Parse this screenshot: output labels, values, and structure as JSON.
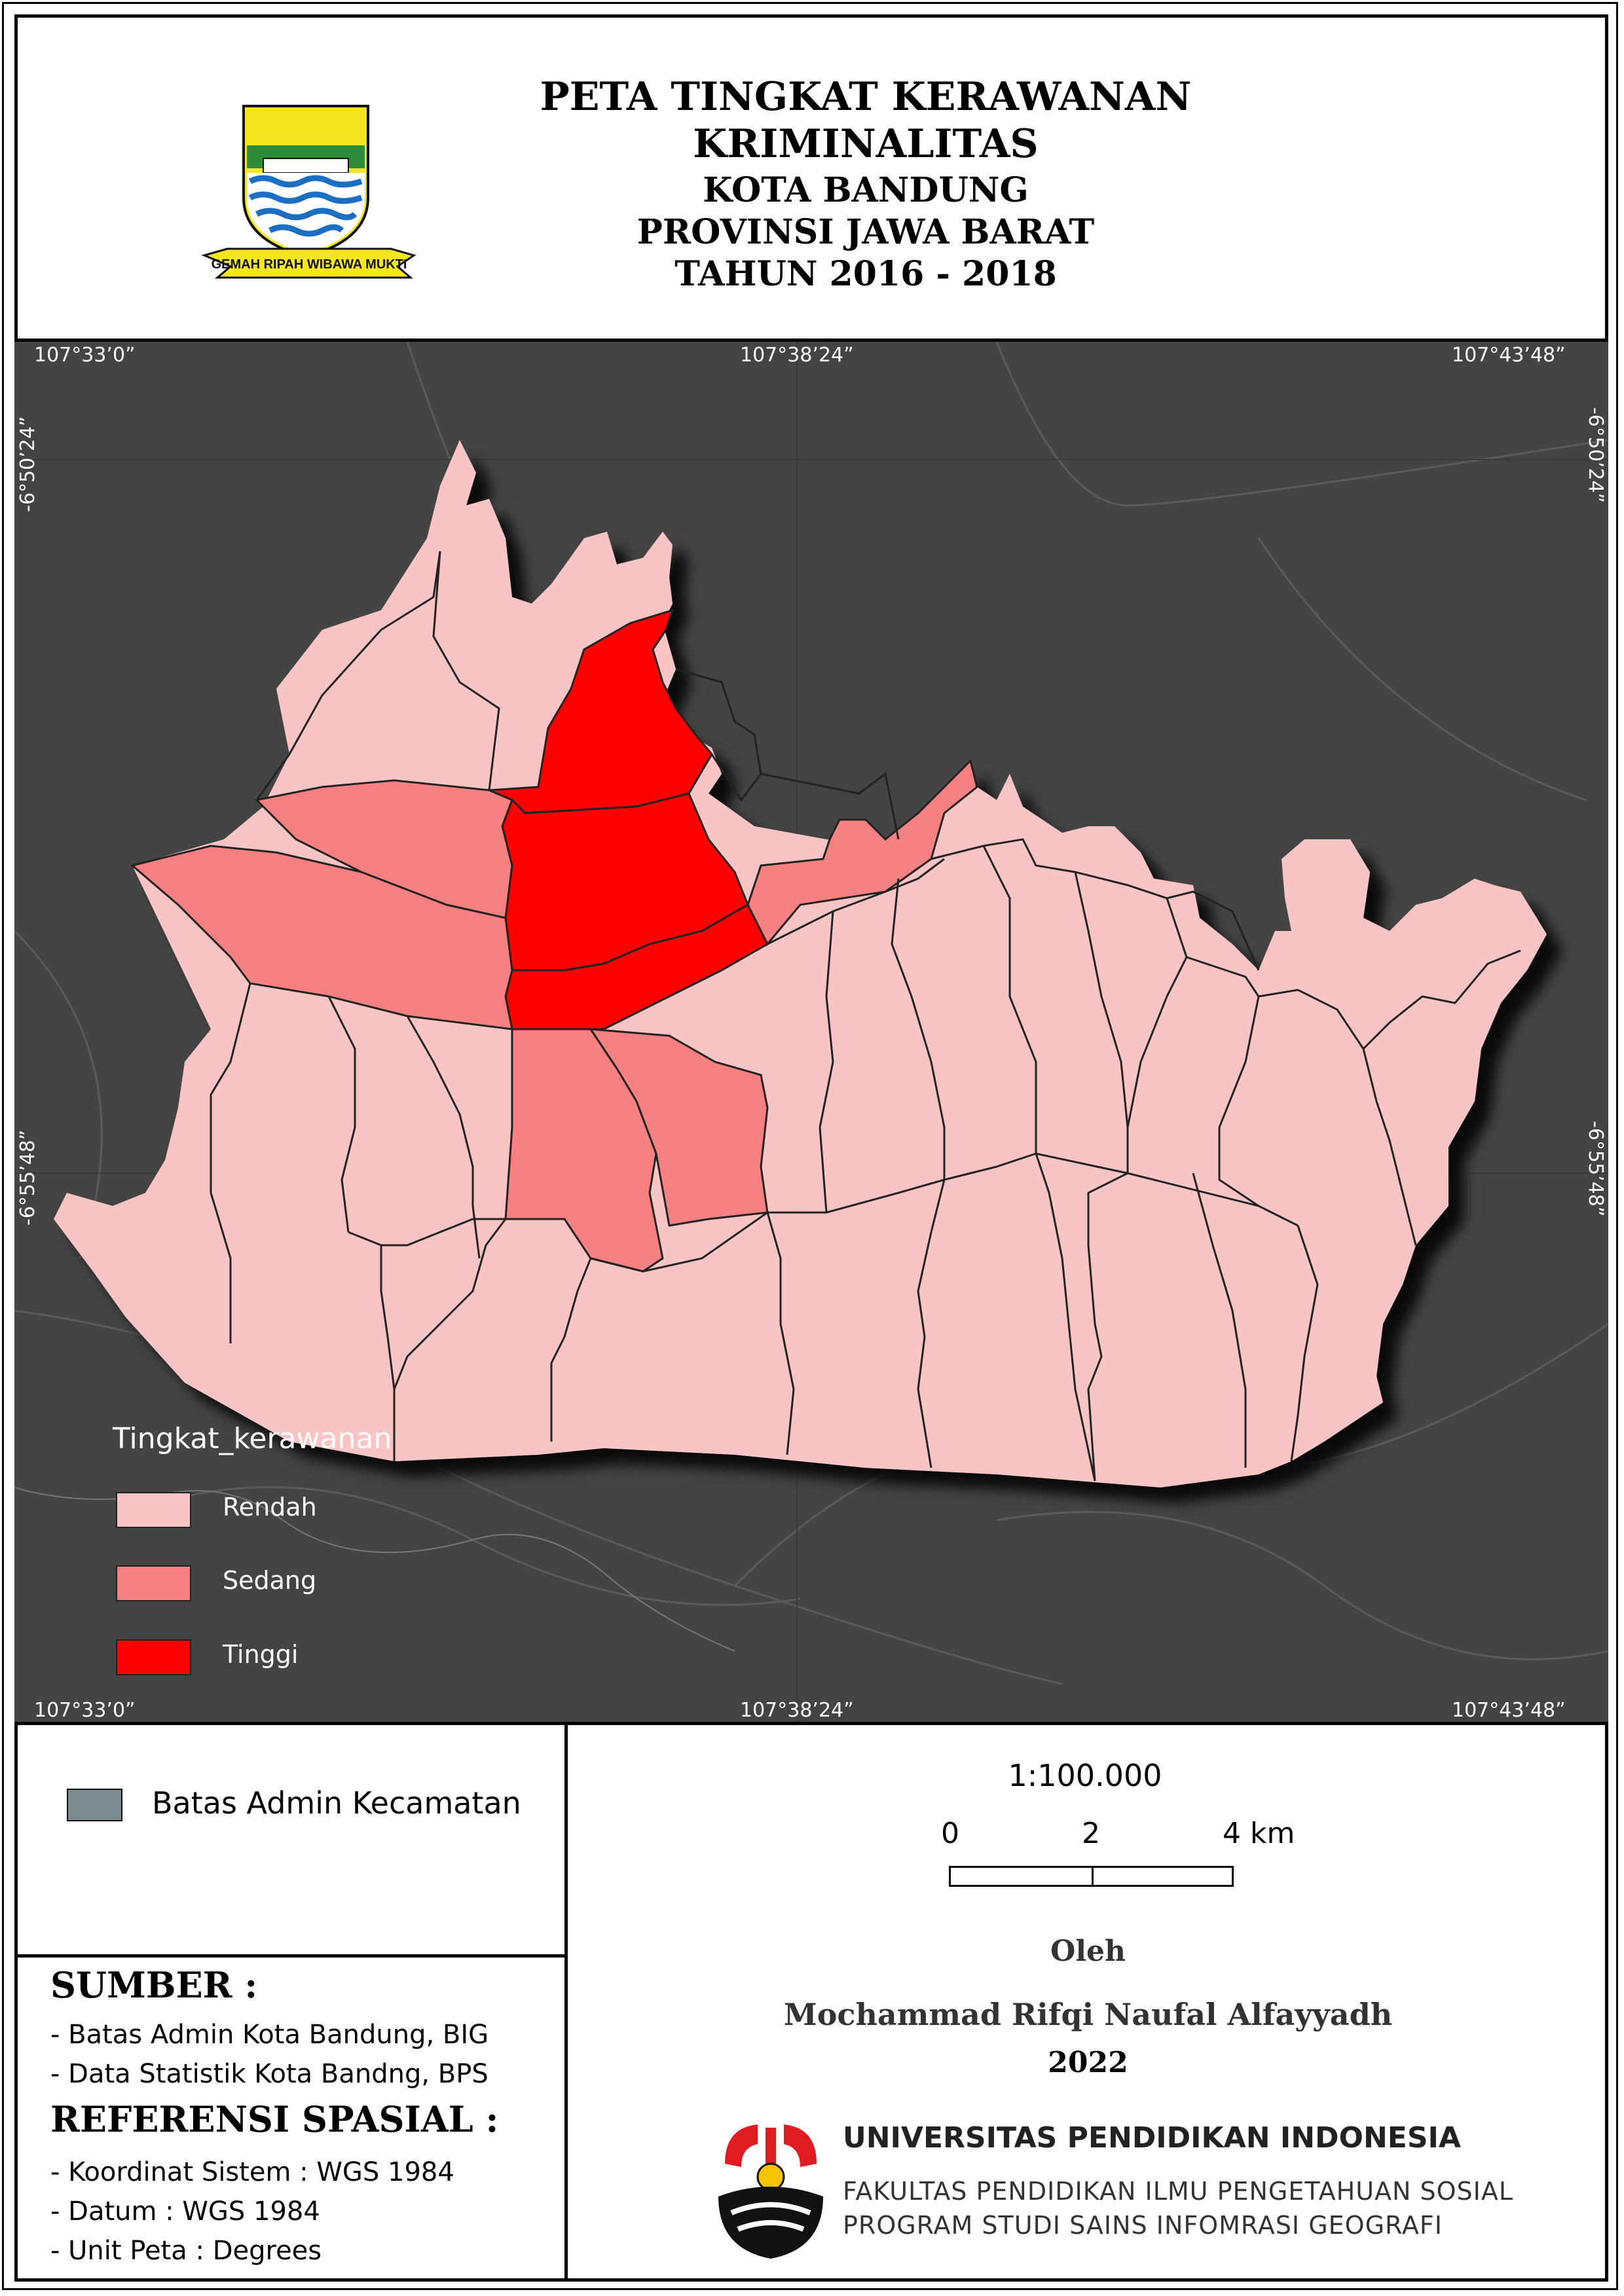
{
  "title": {
    "line1": "PETA TINGKAT KERAWANAN",
    "line2": "KRIMINALITAS",
    "line3": "KOTA BANDUNG",
    "line4": "PROVINSI JAWA BARAT",
    "line5": "TAHUN 2016 - 2018"
  },
  "logo": {
    "motto": "GEMAH RIPAH WIBAWA MUKTI"
  },
  "map": {
    "lon_labels": [
      "107°33’0”",
      "107°38’24”",
      "107°43’48”"
    ],
    "lat_labels": [
      "-6°50’24”",
      "-6°55’48”"
    ],
    "background_color": "#444444"
  },
  "legend": {
    "title": "Tingkat_kerawanan",
    "items": [
      {
        "label": "Rendah",
        "color": "#f8c4c4"
      },
      {
        "label": "Sedang",
        "color": "#f78080"
      },
      {
        "label": "Tinggi",
        "color": "#fe0000"
      }
    ]
  },
  "admin_legend": {
    "label": "Batas Admin Kecamatan",
    "color": "#7b8a8f"
  },
  "sources": {
    "heading": "SUMBER :",
    "items": [
      "- Batas Admin Kota Bandung, BIG",
      "- Data Statistik Kota Bandng, BPS"
    ]
  },
  "spatial_ref": {
    "heading": "REFERENSI SPASIAL :",
    "items": [
      "- Koordinat Sistem : WGS 1984",
      "- Datum : WGS 1984",
      "- Unit Peta : Degrees"
    ]
  },
  "scale": {
    "ratio": "1:100.000",
    "ticks": [
      "0",
      "2",
      "4 km"
    ]
  },
  "credits": {
    "by": "Oleh",
    "author": "Mochammad Rifqi Naufal Alfayyadh",
    "year": "2022",
    "university": "UNIVERSITAS PENDIDIKAN INDONESIA",
    "faculty": "FAKULTAS PENDIDIKAN ILMU PENGETAHUAN SOSIAL",
    "program": "PROGRAM STUDI SAINS INFOMRASI GEOGRAFI"
  }
}
